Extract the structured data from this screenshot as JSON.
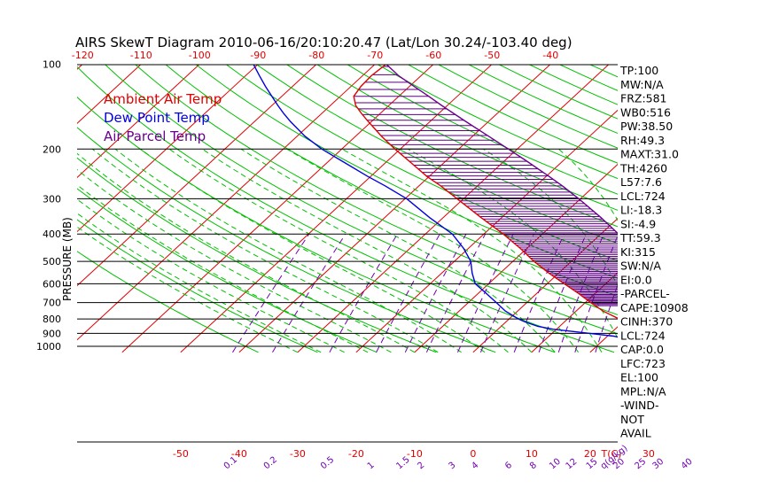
{
  "title": "AIRS SkewT Diagram 2010-06-16/20:10:20.47 (Lat/Lon 30.24/-103.40 deg)",
  "ylabel": "PRESSURE (MB)",
  "top_axis_labels": [
    "-120",
    "-110",
    "-100",
    "-90",
    "-80",
    "-70",
    "-60",
    "-50",
    "-40"
  ],
  "bottom_axis_labels": [
    "-50",
    "-40",
    "-30",
    "-20",
    "-10",
    "0",
    "10",
    "20",
    "30"
  ],
  "bottom_axis_unit": "T(C)",
  "mixing_ratio_labels": [
    "0.1",
    "0.2",
    "0.5",
    "1",
    "1.5",
    "2",
    "3",
    "4",
    "6",
    "8",
    "10",
    "12",
    "15",
    "20",
    "25",
    "30",
    "40"
  ],
  "mixing_ratio_unit": "q(g/kg)",
  "legend": [
    {
      "label": "Ambient Air Temp",
      "color": "#e00000"
    },
    {
      "label": "Dew Point Temp",
      "color": "#0000e0"
    },
    {
      "label": "Air Parcel Temp",
      "color": "#6a0090"
    }
  ],
  "stats": [
    "TP:100",
    "MW:N/A",
    "FRZ:581",
    "WB0:516",
    "PW:38.50",
    "RH:49.3",
    "MAXT:31.0",
    "TH:4260",
    "L57:7.6",
    "LCL:724",
    "LI:-18.3",
    "SI:-4.9",
    "TT:59.3",
    "KI:315",
    "SW:N/A",
    "EI:0.0",
    "-PARCEL-",
    "CAPE:10908",
    "CINH:370",
    "LCL:724",
    "CAP:0.0",
    "LFC:723",
    "EL:100",
    "MPL:N/A",
    "-WIND-",
    "NOT",
    "AVAIL"
  ],
  "colors": {
    "isotherm": "#e00000",
    "dry_adiabat": "#00c000",
    "moist_adiabat": "#00c000",
    "mixing_ratio": "#7000b0",
    "ambient": "#e00000",
    "dewpoint": "#0000e0",
    "parcel": "#6a0090",
    "cape_hatch": "#5a0080"
  },
  "chart_data": {
    "type": "line",
    "title": "AIRS SkewT Diagram 2010-06-16/20:10:20.47 (Lat/Lon 30.24/-103.40 deg)",
    "ylabel": "PRESSURE (MB)",
    "xlabel": "T(C)",
    "y_scale": "log",
    "pressure_ticks": [
      100,
      200,
      300,
      400,
      500,
      600,
      700,
      800,
      900,
      1000
    ],
    "temperature_range": [
      -50,
      40
    ],
    "pressure_range": [
      1050,
      100
    ],
    "series": [
      {
        "name": "Ambient Air Temp",
        "pressure": [
          950,
          920,
          900,
          870,
          850,
          820,
          800,
          750,
          700,
          650,
          600,
          550,
          500,
          450,
          400,
          350,
          300,
          270,
          250,
          220,
          200,
          180,
          160,
          150,
          140,
          130,
          120,
          110,
          100
        ],
        "temperature": [
          31.0,
          29.5,
          27.6,
          24.8,
          23.0,
          20.2,
          18.8,
          14.6,
          10.9,
          7.2,
          2.9,
          -1.7,
          -6.4,
          -11.1,
          -16.7,
          -23.5,
          -31.1,
          -36.3,
          -40.4,
          -46.4,
          -50.9,
          -55.6,
          -60.5,
          -63.1,
          -65.7,
          -67.7,
          -68.3,
          -68.5,
          -68.1
        ]
      },
      {
        "name": "Dew Point Temp",
        "pressure": [
          950,
          920,
          900,
          870,
          850,
          820,
          800,
          750,
          700,
          650,
          600,
          550,
          500,
          450,
          400,
          350,
          300,
          270,
          250,
          220,
          200,
          180,
          160,
          150,
          140,
          130,
          120,
          110,
          100
        ],
        "temperature": [
          25.0,
          21.0,
          16.5,
          9.4,
          6.3,
          3.3,
          1.6,
          -2.1,
          -5.2,
          -8.6,
          -12.3,
          -14.8,
          -17.2,
          -20.8,
          -25.4,
          -32.3,
          -39.7,
          -45.8,
          -50.5,
          -57.9,
          -63.4,
          -68.7,
          -73.8,
          -76.4,
          -79.0,
          -81.7,
          -84.6,
          -87.6,
          -90.8
        ]
      },
      {
        "name": "Air Parcel Temp",
        "pressure": [
          950,
          900,
          850,
          800,
          750,
          724,
          700,
          650,
          600,
          550,
          500,
          450,
          400,
          350,
          300,
          270,
          250,
          220,
          200,
          180,
          160,
          150,
          140,
          130,
          120,
          110,
          100
        ],
        "temperature": [
          31.0,
          29.9,
          28.7,
          27.6,
          26.3,
          25.6,
          24.5,
          22.0,
          19.2,
          16.0,
          12.3,
          8.0,
          3.0,
          -3.0,
          -10.3,
          -15.5,
          -19.5,
          -26.3,
          -31.5,
          -37.3,
          -43.8,
          -47.3,
          -51.0,
          -54.9,
          -59.2,
          -63.8,
          -68.1
        ]
      }
    ]
  }
}
